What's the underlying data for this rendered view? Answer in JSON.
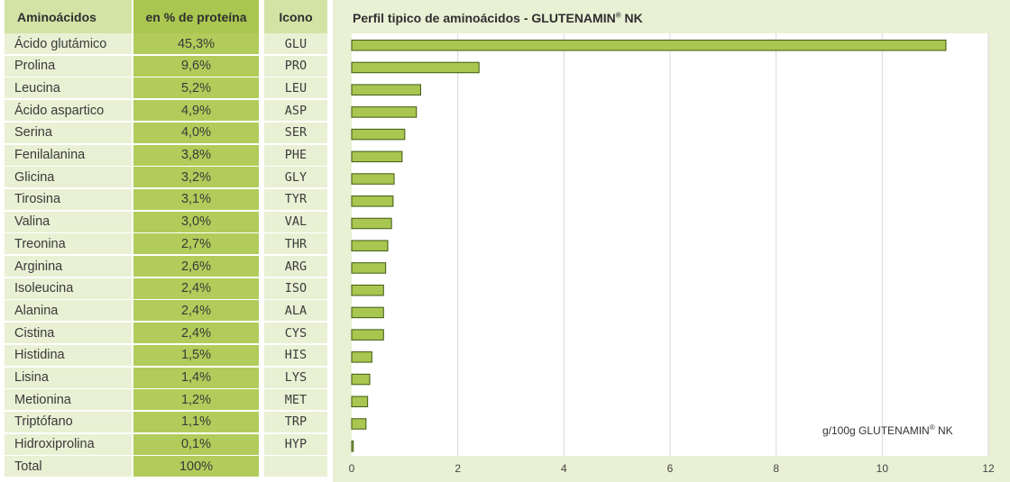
{
  "table": {
    "headers": {
      "aminoacid": "Aminoácidos",
      "percent": "en % de proteína",
      "icon": "Icono"
    },
    "rows": [
      {
        "name": "Ácido glutámico",
        "percent": "45,3%",
        "code": "GLU"
      },
      {
        "name": "Prolina",
        "percent": "9,6%",
        "code": "PRO"
      },
      {
        "name": "Leucina",
        "percent": "5,2%",
        "code": "LEU"
      },
      {
        "name": "Ácido aspartico",
        "percent": "4,9%",
        "code": "ASP"
      },
      {
        "name": "Serina",
        "percent": "4,0%",
        "code": "SER"
      },
      {
        "name": "Fenilalanina",
        "percent": "3,8%",
        "code": "PHE"
      },
      {
        "name": "Glicina",
        "percent": "3,2%",
        "code": "GLY"
      },
      {
        "name": "Tirosina",
        "percent": "3,1%",
        "code": "TYR"
      },
      {
        "name": "Valina",
        "percent": "3,0%",
        "code": "VAL"
      },
      {
        "name": "Treonina",
        "percent": "2,7%",
        "code": "THR"
      },
      {
        "name": "Arginina",
        "percent": "2,6%",
        "code": "ARG"
      },
      {
        "name": "Isoleucina",
        "percent": "2,4%",
        "code": "ISO"
      },
      {
        "name": "Alanina",
        "percent": "2,4%",
        "code": "ALA"
      },
      {
        "name": "Cistina",
        "percent": "2,4%",
        "code": "CYS"
      },
      {
        "name": "Histidina",
        "percent": "1,5%",
        "code": "HIS"
      },
      {
        "name": "Lisina",
        "percent": "1,4%",
        "code": "LYS"
      },
      {
        "name": "Metionina",
        "percent": "1,2%",
        "code": "MET"
      },
      {
        "name": "Triptófano",
        "percent": "1,1%",
        "code": "TRP"
      },
      {
        "name": "Hidroxiprolina",
        "percent": "0,1%",
        "code": "HYP"
      },
      {
        "name": "Total",
        "percent": "100%",
        "code": ""
      }
    ]
  },
  "chart_data": {
    "type": "bar",
    "orientation": "horizontal",
    "title": "Perfil tipico de aminoácidos - GLUTENAMIN",
    "title_mark": "®",
    "title_suffix": " NK",
    "unit_label": "g/100g GLUTENAMIN",
    "unit_label_mark": "®",
    "unit_label_suffix": " NK",
    "categories": [
      "GLU",
      "PRO",
      "LEU",
      "ASP",
      "SER",
      "PHE",
      "GLY",
      "TYR",
      "VAL",
      "THR",
      "ARG",
      "ISO",
      "ALA",
      "CYS",
      "HIS",
      "LYS",
      "MET",
      "TRP",
      "HYP"
    ],
    "values": [
      11.2,
      2.4,
      1.3,
      1.22,
      1.0,
      0.95,
      0.8,
      0.78,
      0.75,
      0.68,
      0.64,
      0.6,
      0.6,
      0.6,
      0.38,
      0.34,
      0.3,
      0.27,
      0.03
    ],
    "xlim": [
      0,
      12
    ],
    "xticks": [
      0,
      2,
      4,
      6,
      8,
      10,
      12
    ],
    "grid": true,
    "colors": {
      "bar_fill": "#a9c650",
      "bar_stroke": "#3e5a12",
      "plot_bg": "#ffffff",
      "grid": "#d9d9d9"
    }
  }
}
